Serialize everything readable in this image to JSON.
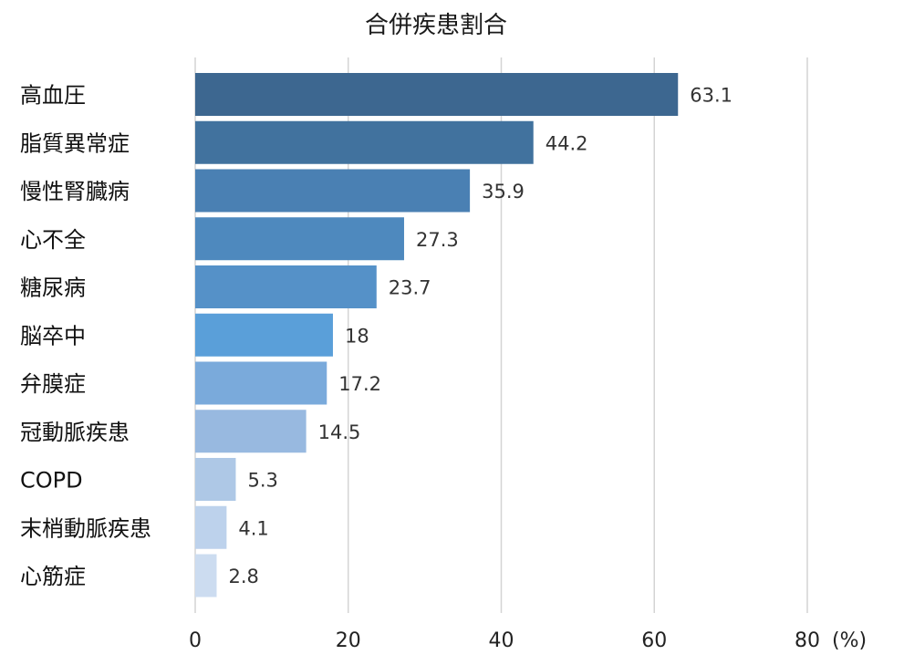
{
  "chart_data": {
    "type": "bar",
    "orientation": "horizontal",
    "title": "合併疾患割合",
    "unit": "(%)",
    "xlim": [
      0,
      80
    ],
    "xticks": [
      0,
      20,
      40,
      60,
      80
    ],
    "grid": true,
    "categories": [
      "高血圧",
      "脂質異常症",
      "慢性腎臓病",
      "心不全",
      "糖尿病",
      "脳卒中",
      "弁膜症",
      "冠動脈疾患",
      "COPD",
      "末梢動脈疾患",
      "心筋症"
    ],
    "values": [
      63.1,
      44.2,
      35.9,
      27.3,
      23.7,
      18,
      17.2,
      14.5,
      5.3,
      4.1,
      2.8
    ],
    "value_labels": [
      "63.1",
      "44.2",
      "35.9",
      "27.3",
      "23.7",
      "18",
      "17.2",
      "14.5",
      "5.3",
      "4.1",
      "2.8"
    ],
    "colors": [
      "#3d6790",
      "#41729e",
      "#4a80b3",
      "#4e89be",
      "#5591c8",
      "#5a9fd9",
      "#7aaadb",
      "#98b9e0",
      "#aec8e6",
      "#bdd2ec",
      "#ccdcf0"
    ]
  }
}
